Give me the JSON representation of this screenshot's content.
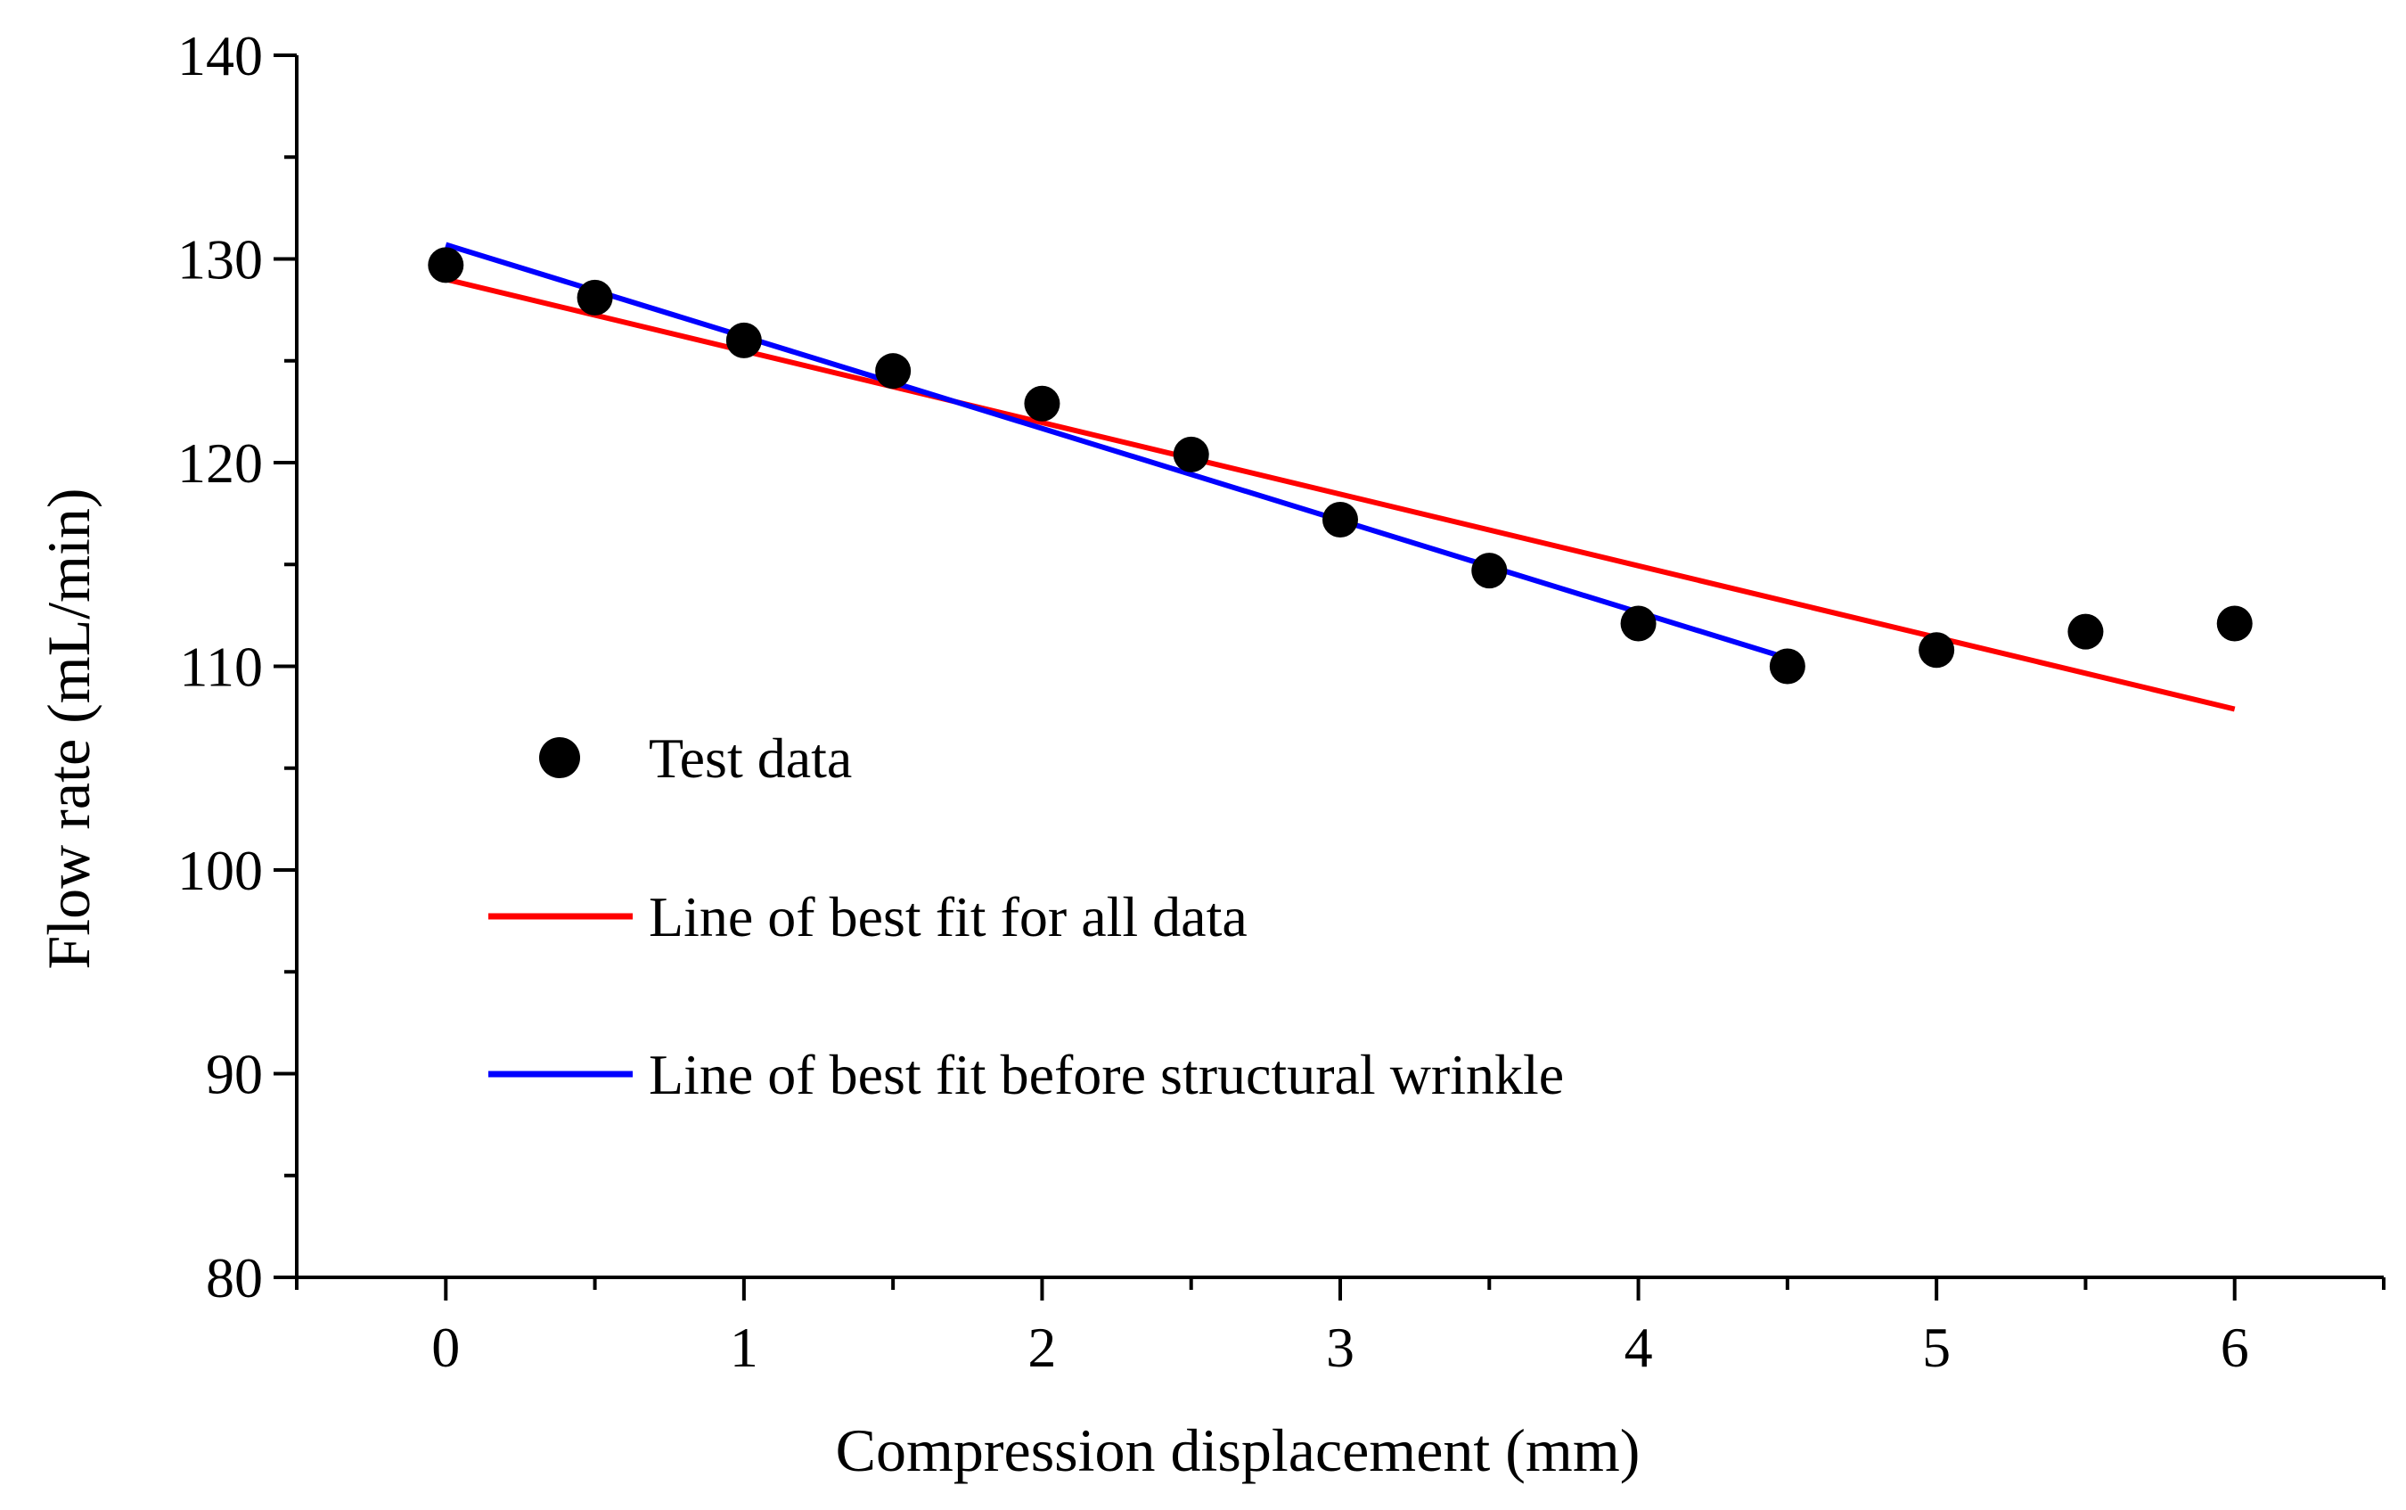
{
  "chart_data": {
    "type": "scatter",
    "title": "",
    "xlabel": "Compression displacement (mm)",
    "ylabel": "Flow rate (mL/min)",
    "xlim": [
      -0.5,
      6.5
    ],
    "ylim": [
      80,
      140
    ],
    "x_ticks": [
      0,
      1,
      2,
      3,
      4,
      5,
      6
    ],
    "y_ticks": [
      80,
      90,
      100,
      110,
      120,
      130,
      140
    ],
    "x_tick_labels": [
      "0",
      "1",
      "2",
      "3",
      "4",
      "5",
      "6"
    ],
    "y_tick_labels": [
      "80",
      "90",
      "100",
      "110",
      "120",
      "130",
      "140"
    ],
    "x_minor_step": 0.5,
    "y_minor_step": 5,
    "grid": false,
    "legend_position": "middle-left",
    "series": [
      {
        "name": "Test data",
        "kind": "scatter",
        "color": "#000000",
        "x": [
          0,
          0.5,
          1,
          1.5,
          2,
          2.5,
          3,
          3.5,
          4,
          4.5,
          5,
          5.5,
          6
        ],
        "y": [
          129.7,
          128.1,
          126.0,
          124.5,
          122.9,
          120.4,
          117.2,
          114.7,
          112.1,
          110.0,
          110.8,
          111.7,
          112.1
        ]
      },
      {
        "name": "Line of best fit for all data",
        "kind": "line",
        "color": "#ff0000",
        "x": [
          0,
          6
        ],
        "y": [
          129.0,
          107.9
        ]
      },
      {
        "name": "Line of best fit before structural wrinkle",
        "kind": "line",
        "color": "#0000ff",
        "x": [
          0,
          4.5
        ],
        "y": [
          130.7,
          110.4
        ]
      }
    ]
  }
}
